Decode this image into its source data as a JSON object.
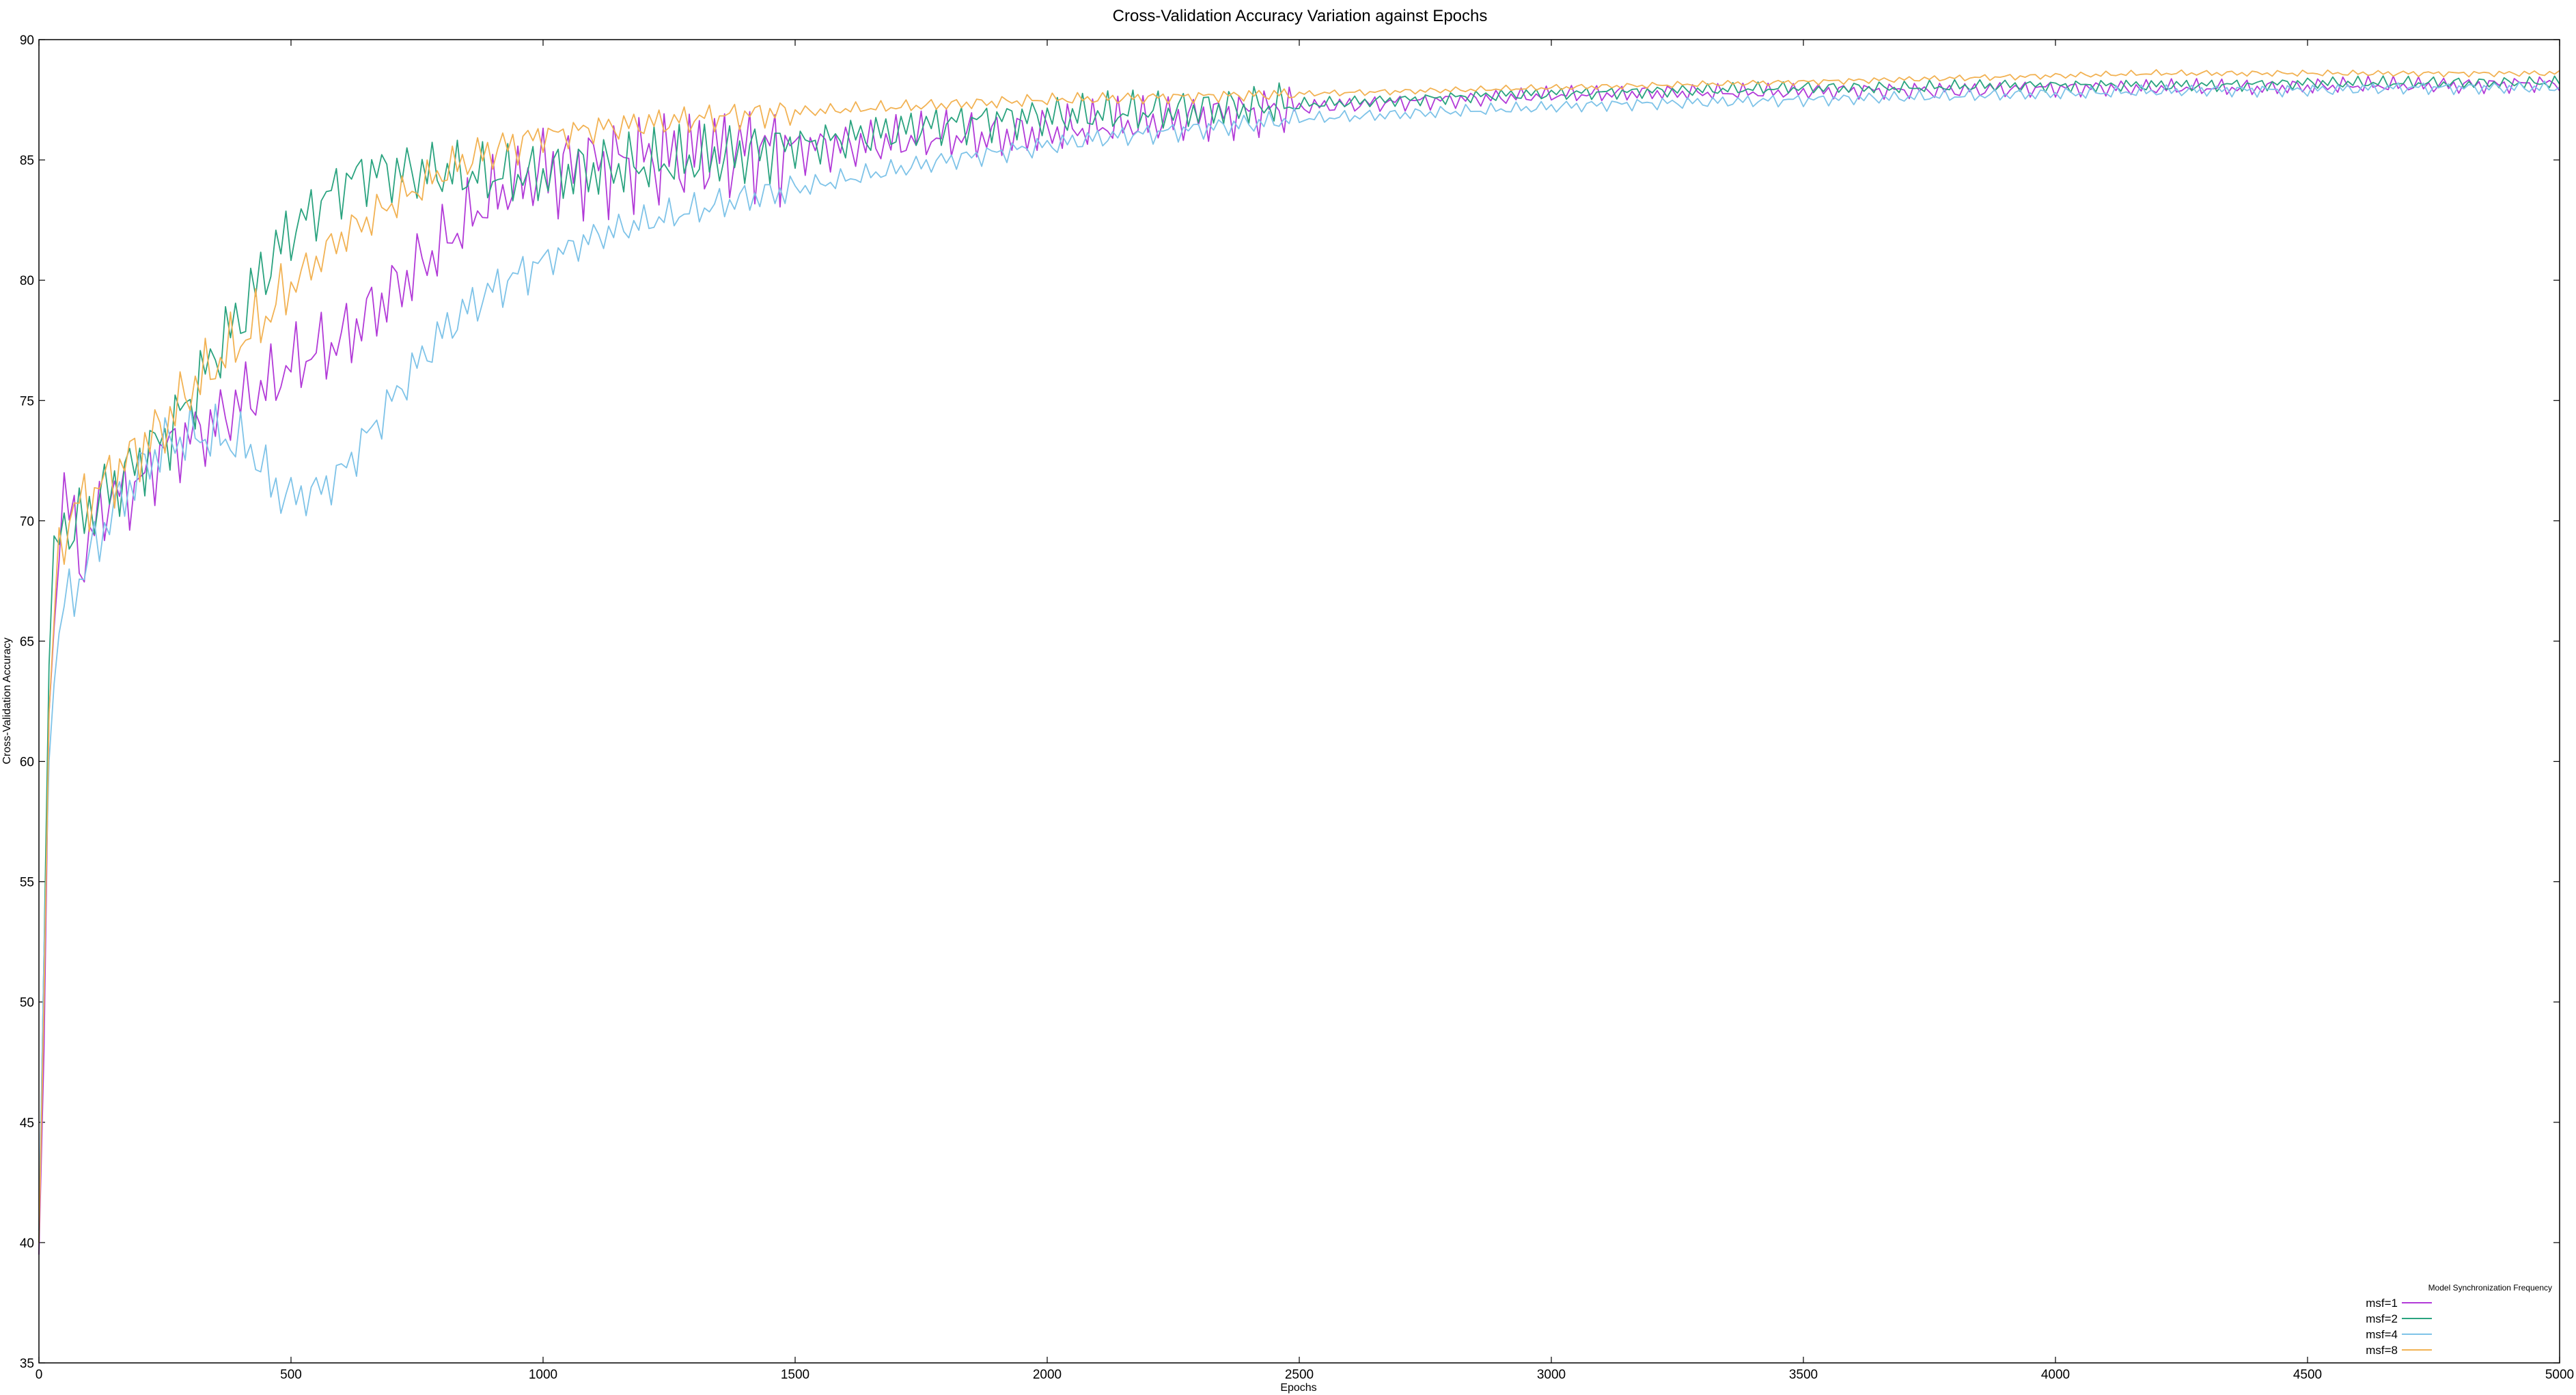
{
  "chart_data": {
    "type": "line",
    "title": "Cross-Validation Accuracy Variation against Epochs",
    "xlabel": "Epochs",
    "ylabel": "Cross-Validation Accuracy",
    "xlim": [
      0,
      5000
    ],
    "ylim": [
      35,
      90
    ],
    "xticks": [
      0,
      500,
      1000,
      1500,
      2000,
      2500,
      3000,
      3500,
      4000,
      4500,
      5000
    ],
    "yticks": [
      35,
      40,
      45,
      50,
      55,
      60,
      65,
      70,
      75,
      80,
      85,
      90
    ],
    "grid": false,
    "legend": {
      "title": "Model Synchronization Frequency",
      "placement": "bottom-right"
    },
    "series": [
      {
        "name": "msf=1",
        "color": "#b23ad8",
        "points": [
          [
            0,
            39.5
          ],
          [
            10,
            48
          ],
          [
            20,
            62
          ],
          [
            35,
            68.5
          ],
          [
            50,
            70.8
          ],
          [
            70,
            70
          ],
          [
            90,
            68
          ],
          [
            120,
            70.5
          ],
          [
            150,
            71
          ],
          [
            200,
            71.5
          ],
          [
            250,
            73
          ],
          [
            300,
            73.5
          ],
          [
            350,
            74
          ],
          [
            400,
            75
          ],
          [
            450,
            75.5
          ],
          [
            500,
            76.5
          ],
          [
            550,
            77
          ],
          [
            600,
            77.5
          ],
          [
            650,
            78.5
          ],
          [
            700,
            79.5
          ],
          [
            750,
            80.5
          ],
          [
            800,
            81.5
          ],
          [
            850,
            82.5
          ],
          [
            900,
            83.5
          ],
          [
            950,
            84
          ],
          [
            1000,
            84.5
          ],
          [
            1100,
            84.8
          ],
          [
            1200,
            85
          ],
          [
            1300,
            85.2
          ],
          [
            1400,
            85.4
          ],
          [
            1500,
            85.5
          ],
          [
            1600,
            85.6
          ],
          [
            1700,
            85.8
          ],
          [
            1800,
            86
          ],
          [
            1900,
            86
          ],
          [
            2000,
            86.2
          ],
          [
            2100,
            86.4
          ],
          [
            2200,
            86.6
          ],
          [
            2300,
            86.8
          ],
          [
            2400,
            87
          ],
          [
            2500,
            87.2
          ],
          [
            2600,
            87.3
          ],
          [
            2700,
            87.4
          ],
          [
            2800,
            87.5
          ],
          [
            2900,
            87.6
          ],
          [
            3000,
            87.7
          ],
          [
            3200,
            87.8
          ],
          [
            3400,
            87.8
          ],
          [
            3600,
            87.9
          ],
          [
            3800,
            87.9
          ],
          [
            4000,
            88
          ],
          [
            4200,
            88
          ],
          [
            4400,
            88
          ],
          [
            4600,
            88.1
          ],
          [
            4800,
            88.1
          ],
          [
            5000,
            88.2
          ]
        ],
        "noise": [
          1.8,
          1.8,
          2.5,
          1.2,
          0.4
        ],
        "phase": 1.3
      },
      {
        "name": "msf=2",
        "color": "#2aa37f",
        "points": [
          [
            0,
            40
          ],
          [
            10,
            52
          ],
          [
            20,
            64
          ],
          [
            35,
            69.5
          ],
          [
            50,
            70
          ],
          [
            70,
            69.5
          ],
          [
            100,
            70.5
          ],
          [
            150,
            71.5
          ],
          [
            200,
            72.5
          ],
          [
            250,
            73.5
          ],
          [
            300,
            75
          ],
          [
            350,
            77
          ],
          [
            400,
            78.5
          ],
          [
            450,
            80.5
          ],
          [
            500,
            82
          ],
          [
            550,
            83
          ],
          [
            600,
            84
          ],
          [
            650,
            84.5
          ],
          [
            700,
            84.5
          ],
          [
            750,
            84.5
          ],
          [
            800,
            84.5
          ],
          [
            850,
            84.4
          ],
          [
            900,
            84.3
          ],
          [
            1000,
            84.4
          ],
          [
            1100,
            84.6
          ],
          [
            1200,
            84.8
          ],
          [
            1300,
            85
          ],
          [
            1400,
            85.3
          ],
          [
            1500,
            85.6
          ],
          [
            1600,
            85.9
          ],
          [
            1700,
            86.2
          ],
          [
            1800,
            86.5
          ],
          [
            1900,
            86.7
          ],
          [
            2000,
            86.8
          ],
          [
            2100,
            86.9
          ],
          [
            2200,
            87
          ],
          [
            2300,
            87.1
          ],
          [
            2400,
            87.2
          ],
          [
            2500,
            87.3
          ],
          [
            2700,
            87.5
          ],
          [
            2900,
            87.7
          ],
          [
            3100,
            87.8
          ],
          [
            3300,
            87.9
          ],
          [
            3500,
            88
          ],
          [
            3700,
            88
          ],
          [
            3900,
            88.1
          ],
          [
            4100,
            88.1
          ],
          [
            4300,
            88.1
          ],
          [
            4500,
            88.2
          ],
          [
            4700,
            88.2
          ],
          [
            5000,
            88.2
          ]
        ],
        "noise": [
          1.8,
          1.5,
          1.6,
          1.0,
          0.3
        ],
        "phase": 2.7
      },
      {
        "name": "msf=4",
        "color": "#7ec3e8",
        "points": [
          [
            0,
            40.5
          ],
          [
            10,
            52
          ],
          [
            20,
            60
          ],
          [
            35,
            65
          ],
          [
            50,
            66.5
          ],
          [
            70,
            67
          ],
          [
            100,
            68.5
          ],
          [
            150,
            70.5
          ],
          [
            200,
            72
          ],
          [
            250,
            73.2
          ],
          [
            300,
            73.5
          ],
          [
            350,
            73.5
          ],
          [
            400,
            73.2
          ],
          [
            430,
            72.8
          ],
          [
            460,
            71.5
          ],
          [
            500,
            71
          ],
          [
            550,
            71.2
          ],
          [
            600,
            72
          ],
          [
            650,
            73.5
          ],
          [
            700,
            75
          ],
          [
            750,
            76.5
          ],
          [
            800,
            77.8
          ],
          [
            850,
            78.8
          ],
          [
            900,
            79.6
          ],
          [
            950,
            80.2
          ],
          [
            1000,
            80.8
          ],
          [
            1100,
            81.8
          ],
          [
            1200,
            82.4
          ],
          [
            1300,
            82.9
          ],
          [
            1400,
            83.4
          ],
          [
            1500,
            83.8
          ],
          [
            1600,
            84.2
          ],
          [
            1700,
            84.6
          ],
          [
            1800,
            85
          ],
          [
            1900,
            85.3
          ],
          [
            2000,
            85.6
          ],
          [
            2100,
            85.9
          ],
          [
            2200,
            86.1
          ],
          [
            2300,
            86.3
          ],
          [
            2400,
            86.5
          ],
          [
            2500,
            86.7
          ],
          [
            2700,
            86.9
          ],
          [
            2900,
            87.1
          ],
          [
            3100,
            87.3
          ],
          [
            3300,
            87.4
          ],
          [
            3500,
            87.5
          ],
          [
            3700,
            87.6
          ],
          [
            3900,
            87.7
          ],
          [
            4100,
            87.8
          ],
          [
            4300,
            87.9
          ],
          [
            4500,
            87.9
          ],
          [
            4700,
            88
          ],
          [
            5000,
            88
          ]
        ],
        "noise": [
          1.4,
          1.1,
          0.8,
          0.5,
          0.3
        ],
        "phase": 4.1
      },
      {
        "name": "msf=8",
        "color": "#f2b253",
        "points": [
          [
            0,
            40
          ],
          [
            10,
            50
          ],
          [
            20,
            62
          ],
          [
            35,
            68
          ],
          [
            50,
            69.5
          ],
          [
            70,
            70.5
          ],
          [
            100,
            71
          ],
          [
            150,
            72
          ],
          [
            200,
            73
          ],
          [
            250,
            74
          ],
          [
            300,
            75.5
          ],
          [
            350,
            76.5
          ],
          [
            400,
            77.5
          ],
          [
            450,
            78.5
          ],
          [
            500,
            79.8
          ],
          [
            550,
            80.8
          ],
          [
            600,
            81.8
          ],
          [
            650,
            82.5
          ],
          [
            700,
            83.2
          ],
          [
            750,
            83.8
          ],
          [
            800,
            84.5
          ],
          [
            850,
            85
          ],
          [
            900,
            85.4
          ],
          [
            950,
            85.7
          ],
          [
            1000,
            86
          ],
          [
            1100,
            86.3
          ],
          [
            1200,
            86.5
          ],
          [
            1300,
            86.7
          ],
          [
            1400,
            86.9
          ],
          [
            1500,
            87
          ],
          [
            1600,
            87.1
          ],
          [
            1700,
            87.2
          ],
          [
            1800,
            87.3
          ],
          [
            1900,
            87.4
          ],
          [
            2000,
            87.5
          ],
          [
            2200,
            87.6
          ],
          [
            2400,
            87.7
          ],
          [
            2600,
            87.8
          ],
          [
            2800,
            87.9
          ],
          [
            3000,
            88
          ],
          [
            3200,
            88.1
          ],
          [
            3400,
            88.2
          ],
          [
            3600,
            88.3
          ],
          [
            3800,
            88.4
          ],
          [
            4000,
            88.5
          ],
          [
            4200,
            88.6
          ],
          [
            4400,
            88.6
          ],
          [
            4600,
            88.6
          ],
          [
            4800,
            88.6
          ],
          [
            5000,
            88.6
          ]
        ],
        "noise": [
          1.6,
          1.0,
          0.7,
          0.3,
          0.15
        ],
        "phase": 5.6
      }
    ]
  }
}
